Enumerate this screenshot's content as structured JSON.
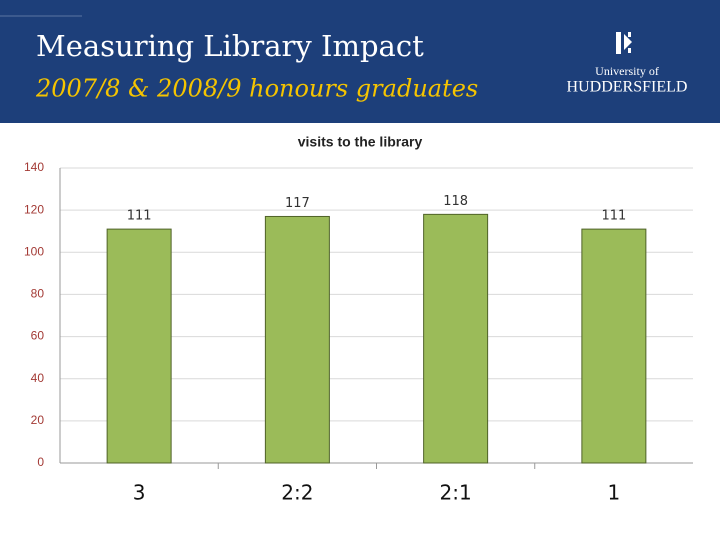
{
  "header": {
    "title": "Measuring Library Impact",
    "subtitle": "2007/8  & 2008/9 honours graduates",
    "logo_top": "University of",
    "logo_bottom": "HUDDERSFIELD"
  },
  "chart_data": {
    "type": "bar",
    "title": "visits to the library",
    "categories": [
      "3",
      "2:2",
      "2:1",
      "1"
    ],
    "values": [
      111,
      117,
      118,
      111
    ],
    "color": "#9bbb59",
    "ylim": [
      0,
      140
    ],
    "yticks": [
      0,
      20,
      40,
      60,
      80,
      100,
      120,
      140
    ],
    "grid": true
  }
}
